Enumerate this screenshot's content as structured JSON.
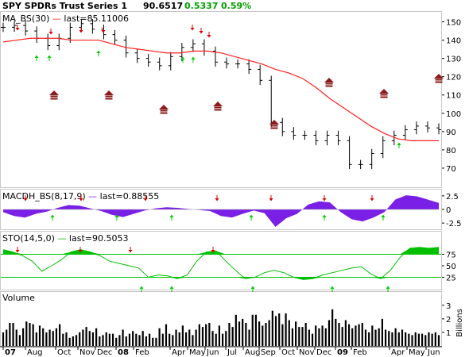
{
  "header": {
    "symbol_title": "SPY SPDRs Trust Series 1",
    "last_price": "90.6517",
    "change": "0.5337",
    "change_pct": "0.59%"
  },
  "chart_data": [
    {
      "type": "line",
      "panel": "price",
      "label": "MA_BS(30) — last=85.11006",
      "y_ticks": [
        "70",
        "80",
        "90",
        "100",
        "110",
        "120",
        "130",
        "140",
        "150"
      ],
      "ylim": [
        60,
        155
      ],
      "x_ticks": [
        "07",
        "Aug",
        "Oct",
        "Nov",
        "Dec",
        "08",
        "Feb",
        "Apr",
        "May",
        "Jun",
        "Jul",
        "Aug",
        "Sep",
        "Oct",
        "Nov",
        "Dec",
        "09",
        "Feb",
        "Apr",
        "May",
        "Jun"
      ],
      "series": [
        {
          "name": "MA_BS(30)",
          "color": "#ff2020",
          "values": [
            139,
            140,
            141,
            141,
            141,
            140,
            140,
            140,
            138,
            136,
            135,
            134,
            133,
            133,
            134,
            134,
            133,
            131,
            129,
            127,
            124,
            122,
            119,
            114,
            108,
            103,
            98,
            93,
            89,
            86,
            85,
            85,
            85
          ]
        },
        {
          "name": "price bars (approx. weekly close)",
          "color": "#000000",
          "values": [
            147,
            148,
            145,
            141,
            137,
            141,
            147,
            149,
            146,
            143,
            140,
            133,
            130,
            128,
            126,
            131,
            136,
            138,
            134,
            128,
            127,
            127,
            124,
            118,
            95,
            90,
            88,
            88,
            85,
            88,
            85,
            72,
            72,
            78,
            85,
            88,
            91,
            93,
            92,
            91
          ]
        }
      ],
      "buy_arrows": 8,
      "sell_arrows": 7,
      "house_markers": 8
    },
    {
      "type": "area",
      "panel": "macd",
      "label": "MACDH_BS(8,17,9) — last=0.88555",
      "y_ticks": [
        "2.5",
        "0",
        "-2.5"
      ],
      "ylim": [
        -3.5,
        3.5
      ],
      "series": [
        {
          "name": "MACDH_BS(8,17,9)",
          "color": "#7a1fe6",
          "values": [
            -0.5,
            -1.2,
            -1.5,
            -0.8,
            -0.4,
            0.3,
            0.8,
            0.7,
            0.2,
            -0.3,
            -1.0,
            -1.4,
            -0.8,
            -0.2,
            0.2,
            0.4,
            0.3,
            0.1,
            -0.1,
            -0.3,
            -1.2,
            -1.5,
            -0.8,
            -0.2,
            -0.7,
            -3.2,
            -1.6,
            -0.8,
            0.9,
            1.5,
            1.3,
            -0.5,
            -1.8,
            -2.2,
            -1.5,
            -0.5,
            1.8,
            2.6,
            2.4,
            1.8,
            1.2
          ]
        }
      ],
      "buy_arrows": 6,
      "sell_arrows": 7
    },
    {
      "type": "area",
      "panel": "stochastic",
      "label": "STO(14,5,0) — last=90.5053",
      "y_ticks": [
        "75",
        "50",
        "25"
      ],
      "ylim": [
        0,
        100
      ],
      "series": [
        {
          "name": "STO(14,5,0)",
          "color": "#00c000",
          "values": [
            85,
            80,
            72,
            60,
            38,
            50,
            63,
            80,
            85,
            80,
            72,
            60,
            55,
            50,
            45,
            25,
            30,
            28,
            22,
            30,
            60,
            80,
            82,
            60,
            40,
            22,
            25,
            35,
            40,
            35,
            25,
            20,
            22,
            30,
            35,
            40,
            45,
            48,
            32,
            22,
            40,
            68,
            88,
            90,
            88,
            90
          ]
        }
      ],
      "buy_arrows": 6,
      "sell_arrows": 4
    },
    {
      "type": "bar",
      "panel": "volume",
      "label": "Volume",
      "ylabel": "Billions",
      "y_ticks": [
        "1",
        "2",
        "3"
      ],
      "ylim": [
        0,
        3.4
      ],
      "values": [
        1.0,
        1.2,
        1.7,
        1.7,
        1.2,
        0.8,
        1.3,
        1.8,
        1.7,
        1.6,
        1.0,
        1.5,
        1.3,
        1.0,
        1.2,
        1.1,
        1.3,
        1.6,
        0.9,
        1.0,
        0.6,
        0.7,
        0.8,
        1.0,
        1.2,
        1.4,
        1.1,
        1.0,
        1.3,
        0.7,
        0.8,
        1.0,
        0.9,
        0.9,
        0.6,
        0.8,
        1.2,
        0.7,
        0.9,
        1.1,
        0.9,
        0.8,
        1.1,
        0.7,
        0.9,
        0.6,
        0.6,
        1.3,
        0.9,
        1.6,
        0.9,
        0.8,
        1.2,
        1.0,
        1.5,
        1.0,
        1.2,
        0.8,
        1.2,
        1.6,
        1.4,
        1.6,
        1.7,
        1.1,
        0.9,
        1.5,
        0.9,
        1.1,
        1.7,
        1.4,
        2.3,
        1.8,
        2.0,
        1.7,
        1.2,
        2.3,
        2.3,
        1.8,
        1.5,
        1.7,
        1.9,
        2.6,
        2.2,
        2.4,
        1.6,
        2.4,
        1.9,
        1.3,
        1.8,
        1.4,
        1.4,
        1.7,
        1.2,
        0.9,
        1.5,
        1.3,
        1.5,
        1.3,
        1.9,
        2.7,
        2.0,
        1.7,
        1.4,
        1.9,
        1.6,
        1.3,
        1.5,
        1.6,
        1.7,
        1.2,
        1.0,
        1.5,
        1.2,
        1.3,
        2.0,
        1.2,
        1.1,
        1.0,
        1.3,
        1.0,
        1.2,
        1.0,
        0.9,
        0.8,
        1.0,
        0.9,
        0.9,
        0.8,
        1.0,
        0.9,
        1.0,
        0.8
      ]
    }
  ],
  "colors": {
    "price_ma": "#ff2020",
    "buy_arrow": "#00cc00",
    "sell_arrow": "#e00000",
    "house": "#8b1a1a",
    "macd": "#7a1fe6",
    "sto": "#00c000",
    "volume": "#000000",
    "header_up": "#00a000"
  }
}
